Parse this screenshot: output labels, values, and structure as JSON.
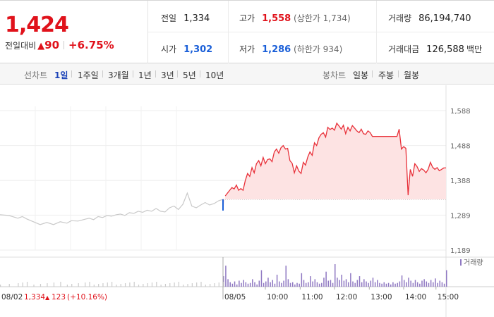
{
  "summary": {
    "current_price": "1,424",
    "change_label": "전일대비",
    "change_icon": "up-triangle-icon",
    "change_arrow": "▲",
    "change_value": "90",
    "change_percent": "+6.75%",
    "prev_close_label": "전일",
    "prev_close": "1,334",
    "high_label": "고가",
    "high": "1,558",
    "upper_limit": "(상한가 1,734)",
    "volume_label": "거래량",
    "volume": "86,194,740",
    "open_label": "시가",
    "open": "1,302",
    "low_label": "저가",
    "low": "1,286",
    "lower_limit": "(하한가 934)",
    "trade_value_label": "거래대금",
    "trade_value": "126,588",
    "trade_value_unit": "백만"
  },
  "toolbar": {
    "line_chart_label": "선차트",
    "line_options": [
      "1일",
      "1주일",
      "3개월",
      "1년",
      "3년",
      "5년",
      "10년"
    ],
    "line_selected": "1일",
    "candle_chart_label": "봉차트",
    "candle_options": [
      "일봉",
      "주봉",
      "월봉"
    ]
  },
  "colors": {
    "up": "#e0121b",
    "down": "#1a5fd8",
    "selected_tab": "#1d44b8",
    "today_line": "#e8313a",
    "today_fill": "#fde3e3",
    "prev_day_line": "#c9c9c9",
    "volume_bar": "#8f78c2"
  },
  "chart_data": {
    "type": "line",
    "y_ticks": [
      "1,588",
      "1,488",
      "1,388",
      "1,289",
      "1,189"
    ],
    "ylim": [
      1189,
      1588
    ],
    "grid": true,
    "baseline": 1334,
    "x_ticks": [
      "08/05",
      "10:00",
      "11:00",
      "12:00",
      "13:00",
      "14:00",
      "15:00"
    ],
    "prev_day": {
      "date": "08/02",
      "close": "1,334",
      "change_arrow": "▲",
      "change": "123",
      "change_percent": "(+10.16%)",
      "x": [
        0,
        4,
        8,
        10,
        12,
        15,
        18,
        21,
        24,
        27,
        30,
        32,
        35,
        38,
        40,
        42,
        44,
        46,
        48,
        50,
        52,
        54,
        56,
        58,
        60,
        62,
        64,
        66,
        68,
        70,
        72,
        74,
        76,
        78,
        80,
        82,
        84,
        86,
        88,
        90,
        92,
        94,
        96,
        98,
        100
      ],
      "y": [
        1290,
        1288,
        1280,
        1285,
        1278,
        1270,
        1262,
        1268,
        1262,
        1270,
        1266,
        1273,
        1272,
        1277,
        1280,
        1276,
        1285,
        1282,
        1288,
        1286,
        1290,
        1292,
        1288,
        1296,
        1294,
        1300,
        1297,
        1303,
        1300,
        1308,
        1300,
        1298,
        1310,
        1315,
        1305,
        1320,
        1352,
        1315,
        1310,
        1318,
        1325,
        1318,
        1322,
        1330,
        1334
      ]
    },
    "today": {
      "x": [
        0,
        1,
        2,
        3,
        4,
        5,
        6,
        7,
        8,
        9,
        10,
        11,
        12,
        13,
        14,
        15,
        16,
        17,
        18,
        19,
        20,
        21,
        22,
        23,
        24,
        25,
        26,
        27,
        28,
        29,
        30,
        31,
        32,
        33,
        34,
        35,
        36,
        37,
        38,
        39,
        40,
        41,
        42,
        43,
        44,
        45,
        46,
        47,
        48,
        49,
        50,
        51,
        52,
        53,
        54,
        55,
        56,
        57,
        58,
        59,
        60,
        61,
        62,
        63,
        64,
        65,
        66,
        67,
        68,
        69,
        70,
        71,
        72,
        73,
        74,
        75,
        76,
        77,
        78,
        79,
        80,
        81,
        82,
        83,
        84,
        85,
        86,
        87,
        88,
        89,
        90,
        91,
        92,
        93,
        94,
        95,
        96,
        97,
        98,
        99,
        100
      ],
      "y": [
        1302,
        1344,
        1352,
        1360,
        1368,
        1364,
        1375,
        1360,
        1365,
        1360,
        1388,
        1408,
        1400,
        1425,
        1410,
        1436,
        1445,
        1430,
        1454,
        1436,
        1448,
        1450,
        1442,
        1470,
        1478,
        1466,
        1482,
        1488,
        1478,
        1480,
        1445,
        1437,
        1410,
        1430,
        1415,
        1408,
        1440,
        1432,
        1455,
        1470,
        1460,
        1496,
        1488,
        1510,
        1520,
        1525,
        1512,
        1540,
        1534,
        1538,
        1532,
        1552,
        1544,
        1535,
        1546,
        1522,
        1540,
        1530,
        1545,
        1538,
        1530,
        1525,
        1535,
        1522,
        1520,
        1530,
        1525,
        1514,
        1514,
        1514,
        1514,
        1514,
        1514,
        1514,
        1514,
        1514,
        1514,
        1514,
        1514,
        1535,
        1478,
        1485,
        1480,
        1346,
        1420,
        1400,
        1436,
        1428,
        1414,
        1422,
        1418,
        1410,
        1420,
        1440,
        1426,
        1420,
        1425,
        1416,
        1420,
        1424,
        1424
      ],
      "volume": [
        14,
        28,
        10,
        6,
        4,
        7,
        3,
        8,
        5,
        9,
        6,
        4,
        5,
        10,
        6,
        3,
        8,
        22,
        5,
        7,
        12,
        6,
        9,
        4,
        16,
        7,
        5,
        8,
        28,
        10,
        5,
        6,
        3,
        5,
        4,
        18,
        9,
        5,
        6,
        14,
        7,
        10,
        6,
        4,
        5,
        12,
        20,
        8,
        9,
        5,
        30,
        12,
        9,
        16,
        8,
        10,
        6,
        18,
        7,
        5,
        9,
        14,
        6,
        10,
        7,
        5,
        8,
        12,
        6,
        9,
        5,
        4,
        6,
        4,
        5,
        3,
        6,
        4,
        5,
        7,
        15,
        9,
        6,
        12,
        8,
        5,
        9,
        6,
        4,
        8,
        10,
        7,
        5,
        9,
        6,
        11,
        5,
        8,
        6,
        4,
        22
      ]
    },
    "volume_legend": "거래량"
  }
}
